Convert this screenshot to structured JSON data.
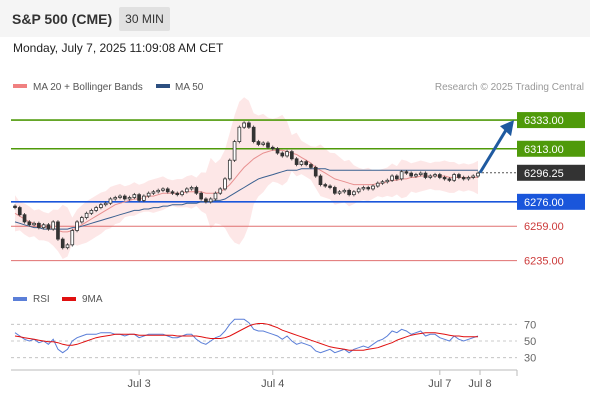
{
  "header": {
    "instrument": "S&P 500 (CME)",
    "timeframe": "30 MIN",
    "datetime": "Monday, July 7, 2025 11:09:08 AM CET"
  },
  "legend": {
    "bb_label": "MA 20 + Bollinger Bands",
    "ma50_label": "MA 50",
    "copyright": "Research © 2025 Trading Central",
    "rsi_label": "RSI",
    "ma9_label": "9MA"
  },
  "colors": {
    "resistance": "#4f9a0a",
    "support": "#1a56db",
    "minor_support": "#e07070",
    "price": "#333333",
    "ma20": "#e89090",
    "ma50": "#3a6090",
    "bollinger_fill": "#fde4e4",
    "arrow": "#1f5aa0",
    "rsi": "#5b7fd8",
    "rsi_ma": "#e01010"
  },
  "chart_data": [
    {
      "type": "line",
      "title": "S&P 500 (CME)",
      "ylim": [
        6218,
        6347
      ],
      "x_labels": [
        "Jul 3",
        "Jul 4",
        "Jul 7",
        "Jul 8"
      ],
      "levels": [
        {
          "value": 6333.0,
          "label": "6333.00",
          "kind": "resistance"
        },
        {
          "value": 6313.0,
          "label": "6313.00",
          "kind": "resistance"
        },
        {
          "value": 6296.25,
          "label": "6296.25",
          "kind": "price"
        },
        {
          "value": 6276.0,
          "label": "6276.00",
          "kind": "support"
        },
        {
          "value": 6259.0,
          "label": "6259.00",
          "kind": "minor_support"
        },
        {
          "value": 6235.0,
          "label": "6235.00",
          "kind": "minor_support"
        }
      ],
      "series": [
        {
          "name": "price",
          "values": [
            6272,
            6267,
            6262,
            6260,
            6261,
            6258,
            6260,
            6257,
            6262,
            6250,
            6244,
            6246,
            6256,
            6262,
            6265,
            6268,
            6270,
            6272,
            6274,
            6275,
            6278,
            6279,
            6280,
            6278,
            6279,
            6281,
            6277,
            6280,
            6282,
            6283,
            6284,
            6285,
            6283,
            6282,
            6281,
            6283,
            6285,
            6286,
            6282,
            6278,
            6276,
            6278,
            6282,
            6285,
            6292,
            6305,
            6318,
            6328,
            6331,
            6328,
            6318,
            6316,
            6317,
            6314,
            6313,
            6310,
            6308,
            6311,
            6306,
            6302,
            6304,
            6302,
            6300,
            6294,
            6288,
            6287,
            6286,
            6282,
            6283,
            6284,
            6281,
            6283,
            6285,
            6286,
            6285,
            6287,
            6289,
            6290,
            6291,
            6294,
            6292,
            6297,
            6296,
            6294,
            6295,
            6296,
            6293,
            6294,
            6295,
            6293,
            6292,
            6291,
            6295,
            6293,
            6292,
            6293,
            6294,
            6296
          ]
        },
        {
          "name": "MA 20",
          "values": [
            6268,
            6266,
            6264,
            6262,
            6261,
            6260,
            6259,
            6258,
            6258,
            6256,
            6255,
            6255,
            6256,
            6258,
            6260,
            6262,
            6264,
            6266,
            6268,
            6270,
            6272,
            6274,
            6275,
            6276,
            6277,
            6278,
            6278,
            6279,
            6280,
            6280,
            6281,
            6282,
            6282,
            6282,
            6282,
            6282,
            6283,
            6283,
            6283,
            6283,
            6282,
            6282,
            6282,
            6283,
            6285,
            6288,
            6292,
            6296,
            6300,
            6303,
            6306,
            6308,
            6310,
            6311,
            6312,
            6312,
            6312,
            6311,
            6310,
            6309,
            6307,
            6305,
            6303,
            6300,
            6298,
            6296,
            6294,
            6292,
            6291,
            6290,
            6289,
            6288,
            6288,
            6288,
            6288,
            6288,
            6289,
            6289,
            6290,
            6291,
            6291,
            6292,
            6292,
            6293,
            6293,
            6294,
            6294,
            6294,
            6294,
            6294,
            6294,
            6293,
            6293,
            6293,
            6293,
            6293,
            6293,
            6293
          ]
        },
        {
          "name": "MA 50",
          "values": [
            6262,
            6261,
            6260,
            6259,
            6258,
            6258,
            6257,
            6257,
            6257,
            6257,
            6257,
            6257,
            6258,
            6258,
            6259,
            6260,
            6261,
            6262,
            6263,
            6264,
            6265,
            6266,
            6267,
            6268,
            6269,
            6270,
            6270,
            6271,
            6271,
            6272,
            6272,
            6273,
            6273,
            6274,
            6274,
            6274,
            6275,
            6275,
            6275,
            6276,
            6276,
            6276,
            6277,
            6277,
            6278,
            6280,
            6282,
            6284,
            6286,
            6288,
            6290,
            6292,
            6293,
            6294,
            6295,
            6296,
            6297,
            6298,
            6298,
            6298,
            6299,
            6299,
            6299,
            6299,
            6299,
            6299,
            6298,
            6298,
            6298,
            6298,
            6298,
            6298,
            6298,
            6298,
            6298,
            6298,
            6298,
            6298,
            6298,
            6298,
            6298,
            6298,
            6298,
            6298,
            6298,
            6298,
            6298,
            6298,
            6298,
            6298,
            6298,
            6298,
            6298,
            6298,
            6298,
            6298,
            6298,
            6298
          ]
        }
      ]
    },
    {
      "type": "line",
      "title": "RSI",
      "ylim": [
        20,
        80
      ],
      "y_ticks": [
        30,
        50,
        70
      ],
      "series": [
        {
          "name": "RSI",
          "values": [
            60,
            56,
            52,
            50,
            52,
            48,
            50,
            46,
            52,
            40,
            36,
            40,
            50,
            54,
            56,
            58,
            58,
            58,
            60,
            60,
            60,
            58,
            58,
            56,
            58,
            58,
            54,
            56,
            58,
            58,
            58,
            58,
            56,
            54,
            54,
            56,
            58,
            58,
            52,
            48,
            46,
            50,
            54,
            56,
            62,
            70,
            76,
            76,
            76,
            72,
            64,
            62,
            62,
            60,
            58,
            56,
            52,
            56,
            50,
            46,
            48,
            46,
            44,
            38,
            36,
            38,
            40,
            36,
            38,
            40,
            36,
            40,
            42,
            44,
            42,
            46,
            50,
            52,
            56,
            62,
            60,
            64,
            62,
            58,
            60,
            62,
            56,
            58,
            58,
            54,
            52,
            50,
            56,
            52,
            50,
            52,
            54,
            56
          ]
        },
        {
          "name": "9MA",
          "values": [
            56,
            55,
            54,
            53,
            52,
            51,
            50,
            49,
            49,
            48,
            46,
            45,
            45,
            46,
            48,
            50,
            52,
            54,
            55,
            56,
            57,
            58,
            58,
            58,
            58,
            58,
            57,
            57,
            57,
            57,
            57,
            57,
            57,
            57,
            56,
            56,
            56,
            56,
            56,
            55,
            54,
            53,
            53,
            53,
            54,
            56,
            59,
            62,
            65,
            68,
            70,
            71,
            71,
            70,
            68,
            66,
            63,
            61,
            59,
            57,
            55,
            53,
            51,
            49,
            47,
            45,
            43,
            42,
            41,
            40,
            39,
            39,
            39,
            39,
            40,
            41,
            42,
            44,
            46,
            48,
            51,
            53,
            55,
            57,
            58,
            59,
            60,
            60,
            60,
            59,
            58,
            57,
            56,
            56,
            55,
            55,
            55,
            55
          ]
        }
      ]
    }
  ]
}
